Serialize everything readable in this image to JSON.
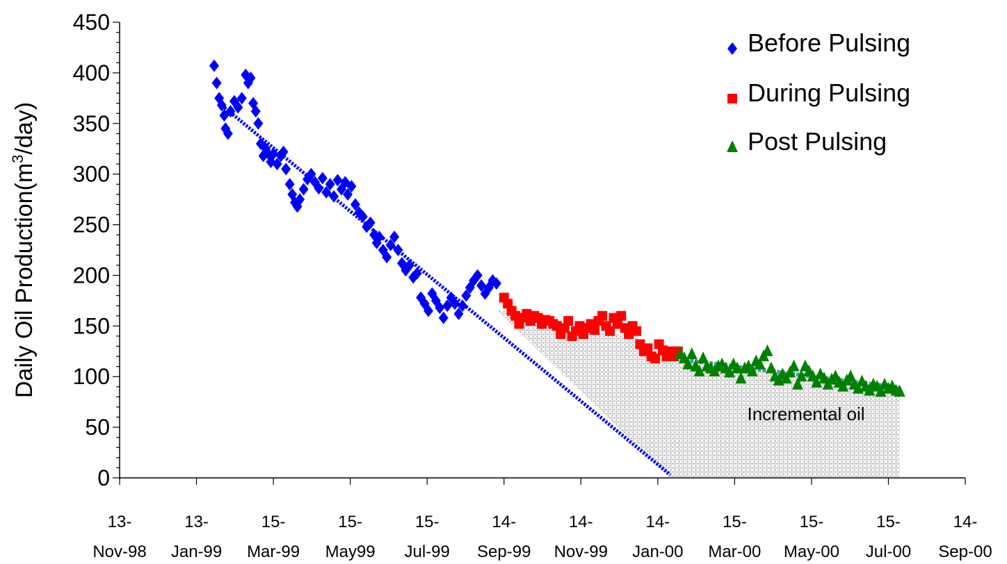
{
  "chart_data": {
    "type": "scatter",
    "title": "",
    "xlabel": "",
    "ylabel": "Daily Oil Production(m³/day)",
    "ylabel_parts": {
      "prefix": "Daily Oil Production(m",
      "sup": "3",
      "suffix": "/day)"
    },
    "ylim": [
      0,
      450
    ],
    "y_ticks": [
      0,
      50,
      100,
      150,
      200,
      250,
      300,
      350,
      400,
      450
    ],
    "xlim": [
      "1998-11-13",
      "2000-09-14"
    ],
    "x_ticks": [
      {
        "date": "1998-11-13",
        "line1": "13-",
        "line2": "Nov-98"
      },
      {
        "date": "1999-01-13",
        "line1": "13-",
        "line2": "Jan-99"
      },
      {
        "date": "1999-03-15",
        "line1": "15-",
        "line2": "Mar-99"
      },
      {
        "date": "1999-05-15",
        "line1": "15-",
        "line2": "May99"
      },
      {
        "date": "1999-07-15",
        "line1": "15-",
        "line2": "Jul-99"
      },
      {
        "date": "1999-09-14",
        "line1": "14-",
        "line2": "Sep-99"
      },
      {
        "date": "1999-11-14",
        "line1": "14-",
        "line2": "Nov-99"
      },
      {
        "date": "2000-01-14",
        "line1": "14-",
        "line2": "Jan-00"
      },
      {
        "date": "2000-03-15",
        "line1": "15-",
        "line2": "Mar-00"
      },
      {
        "date": "2000-05-15",
        "line1": "15-",
        "line2": "May-00"
      },
      {
        "date": "2000-07-15",
        "line1": "15-",
        "line2": "Jul-00"
      },
      {
        "date": "2000-09-14",
        "line1": "14-",
        "line2": "Sep-00"
      }
    ],
    "grid": false,
    "legend_position": "top-right",
    "series": [
      {
        "name": "Before Pulsing",
        "marker": "diamond",
        "color": "#0000ff",
        "points": [
          [
            "1999-01-27",
            407
          ],
          [
            "1999-01-29",
            390
          ],
          [
            "1999-01-31",
            375
          ],
          [
            "1999-02-02",
            368
          ],
          [
            "1999-02-04",
            358
          ],
          [
            "1999-02-05",
            345
          ],
          [
            "1999-02-07",
            340
          ],
          [
            "1999-02-09",
            362
          ],
          [
            "1999-02-12",
            372
          ],
          [
            "1999-02-15",
            366
          ],
          [
            "1999-02-18",
            375
          ],
          [
            "1999-02-21",
            398
          ],
          [
            "1999-02-23",
            390
          ],
          [
            "1999-02-25",
            395
          ],
          [
            "1999-02-27",
            370
          ],
          [
            "1999-03-01",
            362
          ],
          [
            "1999-03-03",
            350
          ],
          [
            "1999-03-05",
            330
          ],
          [
            "1999-03-07",
            318
          ],
          [
            "1999-03-09",
            325
          ],
          [
            "1999-03-11",
            320
          ],
          [
            "1999-03-13",
            312
          ],
          [
            "1999-03-15",
            320
          ],
          [
            "1999-03-18",
            310
          ],
          [
            "1999-03-21",
            318
          ],
          [
            "1999-03-23",
            322
          ],
          [
            "1999-03-25",
            305
          ],
          [
            "1999-03-28",
            290
          ],
          [
            "1999-03-30",
            280
          ],
          [
            "1999-04-01",
            272
          ],
          [
            "1999-04-03",
            268
          ],
          [
            "1999-04-05",
            275
          ],
          [
            "1999-04-08",
            285
          ],
          [
            "1999-04-11",
            295
          ],
          [
            "1999-04-14",
            300
          ],
          [
            "1999-04-17",
            292
          ],
          [
            "1999-04-20",
            286
          ],
          [
            "1999-04-23",
            296
          ],
          [
            "1999-04-26",
            282
          ],
          [
            "1999-04-29",
            290
          ],
          [
            "1999-05-02",
            278
          ],
          [
            "1999-05-05",
            294
          ],
          [
            "1999-05-08",
            285
          ],
          [
            "1999-05-11",
            292
          ],
          [
            "1999-05-13",
            280
          ],
          [
            "1999-05-16",
            288
          ],
          [
            "1999-05-19",
            270
          ],
          [
            "1999-05-22",
            262
          ],
          [
            "1999-05-25",
            258
          ],
          [
            "1999-05-28",
            248
          ],
          [
            "1999-05-31",
            252
          ],
          [
            "1999-06-03",
            240
          ],
          [
            "1999-06-05",
            232
          ],
          [
            "1999-06-07",
            238
          ],
          [
            "1999-06-10",
            225
          ],
          [
            "1999-06-13",
            218
          ],
          [
            "1999-06-16",
            230
          ],
          [
            "1999-06-19",
            238
          ],
          [
            "1999-06-22",
            225
          ],
          [
            "1999-06-25",
            212
          ],
          [
            "1999-06-28",
            205
          ],
          [
            "1999-07-01",
            210
          ],
          [
            "1999-07-04",
            198
          ],
          [
            "1999-07-07",
            202
          ],
          [
            "1999-07-10",
            178
          ],
          [
            "1999-07-13",
            172
          ],
          [
            "1999-07-16",
            165
          ],
          [
            "1999-07-19",
            182
          ],
          [
            "1999-07-22",
            175
          ],
          [
            "1999-07-25",
            168
          ],
          [
            "1999-07-28",
            158
          ],
          [
            "1999-07-31",
            170
          ],
          [
            "1999-08-03",
            178
          ],
          [
            "1999-08-06",
            172
          ],
          [
            "1999-08-09",
            162
          ],
          [
            "1999-08-12",
            170
          ],
          [
            "1999-08-15",
            180
          ],
          [
            "1999-08-18",
            188
          ],
          [
            "1999-08-21",
            195
          ],
          [
            "1999-08-24",
            200
          ],
          [
            "1999-08-27",
            190
          ],
          [
            "1999-08-30",
            182
          ],
          [
            "1999-09-02",
            188
          ],
          [
            "1999-09-05",
            195
          ],
          [
            "1999-09-08",
            192
          ]
        ]
      },
      {
        "name": "During Pulsing",
        "marker": "square",
        "color": "#ff0000",
        "points": [
          [
            "1999-09-14",
            178
          ],
          [
            "1999-09-17",
            172
          ],
          [
            "1999-09-20",
            165
          ],
          [
            "1999-09-23",
            160
          ],
          [
            "1999-09-26",
            152
          ],
          [
            "1999-09-29",
            158
          ],
          [
            "1999-10-02",
            162
          ],
          [
            "1999-10-05",
            155
          ],
          [
            "1999-10-08",
            160
          ],
          [
            "1999-10-11",
            158
          ],
          [
            "1999-10-14",
            152
          ],
          [
            "1999-10-17",
            156
          ],
          [
            "1999-10-20",
            155
          ],
          [
            "1999-10-23",
            152
          ],
          [
            "1999-10-26",
            150
          ],
          [
            "1999-10-29",
            142
          ],
          [
            "1999-11-01",
            148
          ],
          [
            "1999-11-04",
            155
          ],
          [
            "1999-11-07",
            140
          ],
          [
            "1999-11-10",
            145
          ],
          [
            "1999-11-13",
            150
          ],
          [
            "1999-11-16",
            142
          ],
          [
            "1999-11-19",
            148
          ],
          [
            "1999-11-22",
            152
          ],
          [
            "1999-11-25",
            146
          ],
          [
            "1999-11-28",
            155
          ],
          [
            "1999-12-01",
            160
          ],
          [
            "1999-12-04",
            150
          ],
          [
            "1999-12-07",
            145
          ],
          [
            "1999-12-10",
            158
          ],
          [
            "1999-12-13",
            152
          ],
          [
            "1999-12-16",
            160
          ],
          [
            "1999-12-19",
            148
          ],
          [
            "1999-12-22",
            142
          ],
          [
            "1999-12-25",
            150
          ],
          [
            "1999-12-28",
            145
          ],
          [
            "1999-12-31",
            132
          ],
          [
            "2000-01-03",
            125
          ],
          [
            "2000-01-06",
            128
          ],
          [
            "2000-01-09",
            120
          ],
          [
            "2000-01-12",
            118
          ],
          [
            "2000-01-15",
            132
          ],
          [
            "2000-01-18",
            126
          ],
          [
            "2000-01-21",
            120
          ],
          [
            "2000-01-24",
            125
          ],
          [
            "2000-01-27",
            120
          ],
          [
            "2000-01-30",
            125
          ]
        ]
      },
      {
        "name": "Post Pulsing",
        "marker": "triangle",
        "color": "#008000",
        "points": [
          [
            "2000-02-01",
            122
          ],
          [
            "2000-02-04",
            118
          ],
          [
            "2000-02-07",
            112
          ],
          [
            "2000-02-10",
            122
          ],
          [
            "2000-02-13",
            110
          ],
          [
            "2000-02-16",
            105
          ],
          [
            "2000-02-19",
            118
          ],
          [
            "2000-02-22",
            110
          ],
          [
            "2000-02-25",
            108
          ],
          [
            "2000-02-28",
            105
          ],
          [
            "2000-03-02",
            110
          ],
          [
            "2000-03-05",
            112
          ],
          [
            "2000-03-08",
            108
          ],
          [
            "2000-03-11",
            104
          ],
          [
            "2000-03-14",
            112
          ],
          [
            "2000-03-17",
            108
          ],
          [
            "2000-03-20",
            98
          ],
          [
            "2000-03-23",
            108
          ],
          [
            "2000-03-26",
            110
          ],
          [
            "2000-03-29",
            105
          ],
          [
            "2000-04-01",
            115
          ],
          [
            "2000-04-04",
            112
          ],
          [
            "2000-04-07",
            120
          ],
          [
            "2000-04-10",
            125
          ],
          [
            "2000-04-13",
            108
          ],
          [
            "2000-04-16",
            100
          ],
          [
            "2000-04-19",
            96
          ],
          [
            "2000-04-22",
            102
          ],
          [
            "2000-04-25",
            98
          ],
          [
            "2000-04-28",
            104
          ],
          [
            "2000-05-01",
            110
          ],
          [
            "2000-05-04",
            92
          ],
          [
            "2000-05-07",
            100
          ],
          [
            "2000-05-10",
            110
          ],
          [
            "2000-05-13",
            105
          ],
          [
            "2000-05-16",
            100
          ],
          [
            "2000-05-19",
            94
          ],
          [
            "2000-05-22",
            102
          ],
          [
            "2000-05-25",
            98
          ],
          [
            "2000-05-28",
            92
          ],
          [
            "2000-05-31",
            97
          ],
          [
            "2000-06-03",
            100
          ],
          [
            "2000-06-06",
            94
          ],
          [
            "2000-06-09",
            90
          ],
          [
            "2000-06-12",
            96
          ],
          [
            "2000-06-15",
            100
          ],
          [
            "2000-06-18",
            92
          ],
          [
            "2000-06-21",
            88
          ],
          [
            "2000-06-24",
            95
          ],
          [
            "2000-06-27",
            90
          ],
          [
            "2000-06-30",
            86
          ],
          [
            "2000-07-03",
            92
          ],
          [
            "2000-07-06",
            90
          ],
          [
            "2000-07-09",
            85
          ],
          [
            "2000-07-12",
            92
          ],
          [
            "2000-07-15",
            88
          ],
          [
            "2000-07-18",
            90
          ],
          [
            "2000-07-21",
            86
          ],
          [
            "2000-07-24",
            85
          ]
        ]
      }
    ],
    "trendlines": [
      {
        "color": "#0000ff",
        "points": [
          [
            "1999-01-31",
            370
          ],
          [
            "2000-01-24",
            3
          ]
        ]
      },
      {
        "color": "#008080",
        "points": [
          [
            "2000-02-01",
            117
          ],
          [
            "2000-07-24",
            89
          ]
        ]
      }
    ],
    "shaded_region": {
      "label": "Incremental oil",
      "fill": "#c0c0c0",
      "upper": [
        [
          "1999-09-08",
          166
        ],
        [
          "1999-09-14",
          165
        ],
        [
          "1999-10-01",
          153
        ],
        [
          "1999-11-01",
          143
        ],
        [
          "1999-12-01",
          143
        ],
        [
          "1999-12-28",
          140
        ],
        [
          "2000-01-06",
          118
        ],
        [
          "2000-01-30",
          117
        ],
        [
          "2000-02-01",
          116
        ],
        [
          "2000-07-24",
          85
        ]
      ],
      "lower": [
        [
          "2000-07-24",
          0
        ],
        [
          "2000-01-24",
          0
        ],
        [
          "1999-09-08",
          166
        ]
      ]
    },
    "annotations": [
      {
        "text": "Incremental oil",
        "x": "2000-03-25",
        "y": 57
      }
    ]
  }
}
